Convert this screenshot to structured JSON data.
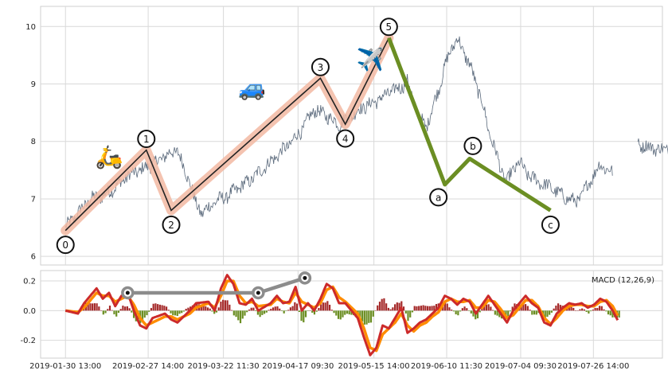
{
  "chart_data": [
    {
      "type": "line",
      "panel": "price",
      "ylim": [
        5.85,
        10.35
      ],
      "yticks": [
        6,
        7,
        8,
        9,
        10
      ],
      "grid": true,
      "price_color": "#5b6a7c",
      "price_path": [
        [
          0,
          6.5
        ],
        [
          2,
          6.75
        ],
        [
          4,
          7.0
        ],
        [
          6,
          7.05
        ],
        [
          8,
          7.2
        ],
        [
          10,
          7.4
        ],
        [
          12,
          7.5
        ],
        [
          14,
          7.6
        ],
        [
          16,
          7.75
        ],
        [
          18,
          7.85
        ],
        [
          19,
          7.55
        ],
        [
          20,
          7.3
        ],
        [
          21,
          6.9
        ],
        [
          22,
          6.75
        ],
        [
          24,
          6.95
        ],
        [
          26,
          7.05
        ],
        [
          28,
          7.2
        ],
        [
          30,
          7.35
        ],
        [
          32,
          7.55
        ],
        [
          34,
          7.75
        ],
        [
          36,
          7.95
        ],
        [
          38,
          8.2
        ],
        [
          40,
          8.55
        ],
        [
          42,
          8.45
        ],
        [
          44,
          8.3
        ],
        [
          46,
          8.45
        ],
        [
          48,
          8.6
        ],
        [
          50,
          8.7
        ],
        [
          52,
          8.85
        ],
        [
          54,
          8.95
        ],
        [
          55,
          9.05
        ],
        [
          56,
          8.7
        ],
        [
          57,
          8.4
        ],
        [
          58,
          8.25
        ],
        [
          60,
          8.9
        ],
        [
          61,
          9.3
        ],
        [
          62,
          9.6
        ],
        [
          63,
          9.8
        ],
        [
          64,
          9.55
        ],
        [
          65,
          9.35
        ],
        [
          66,
          9.0
        ],
        [
          67,
          8.7
        ],
        [
          68,
          8.2
        ],
        [
          69,
          7.9
        ],
        [
          70,
          7.5
        ],
        [
          71,
          7.3
        ],
        [
          72,
          7.5
        ],
        [
          73,
          7.65
        ],
        [
          74,
          7.45
        ],
        [
          76,
          7.3
        ],
        [
          78,
          7.2
        ],
        [
          80,
          7.05
        ],
        [
          82,
          6.95
        ],
        [
          83,
          7.05
        ],
        [
          84,
          7.25
        ],
        [
          86,
          7.6
        ],
        [
          88,
          7.45
        ],
        [
          90,
          7.5
        ],
        [
          92,
          7.95
        ],
        [
          94,
          7.9
        ],
        [
          96,
          7.85
        ],
        [
          98,
          7.95
        ],
        [
          100,
          8.0
        ],
        [
          102,
          7.85
        ],
        [
          104,
          7.7
        ],
        [
          106,
          7.6
        ],
        [
          108,
          7.75
        ],
        [
          110,
          7.8
        ],
        [
          112,
          7.95
        ],
        [
          114,
          8.0
        ],
        [
          115,
          8.15
        ],
        [
          116,
          7.9
        ],
        [
          117,
          7.75
        ]
      ],
      "gap_after_x": [
        [
          88,
          92
        ]
      ],
      "wave_x_range": [
        0,
        117
      ],
      "impulse_wave": {
        "labels": [
          "0",
          "1",
          "2",
          "3",
          "4",
          "5"
        ],
        "x": [
          0,
          13,
          17,
          41,
          45,
          52
        ],
        "y": [
          6.45,
          7.85,
          6.8,
          9.1,
          8.3,
          9.8
        ],
        "line_color": "#222222",
        "band_color": "#f2b8a2"
      },
      "correction_wave": {
        "labels": [
          "a",
          "b",
          "c"
        ],
        "x": [
          61,
          65,
          78
        ],
        "y": [
          7.25,
          7.7,
          6.8
        ],
        "color": "#6b8e23"
      },
      "emoji_markers": [
        {
          "name": "scooter",
          "glyph": "🛵",
          "x": 7,
          "y": 7.6
        },
        {
          "name": "car",
          "glyph": "🚙",
          "x": 30,
          "y": 8.8
        },
        {
          "name": "airplane",
          "glyph": "✈️",
          "x": 49,
          "y": 9.3
        }
      ]
    },
    {
      "type": "area",
      "panel": "macd",
      "label": "MACD (12,26,9)",
      "ylim": [
        -0.32,
        0.27
      ],
      "yticks": [
        -0.2,
        0.0,
        0.2
      ],
      "grid": true,
      "xtick_labels": [
        "2019-01-30 13:00",
        "2019-02-27 14:00",
        "2019-03-22 11:30",
        "2019-04-17 09:30",
        "2019-05-15 14:00",
        "2019-06-10 11:30",
        "2019-07-04 09:30",
        "2019-07-26 14:00"
      ],
      "xtick_x": [
        0,
        13.3,
        25.4,
        37.4,
        49.6,
        61.3,
        73.2,
        84.9
      ],
      "macd_color": "#cc2a2a",
      "signal_color": "#ff8c00",
      "hist_pos_color": "#a52a2a",
      "hist_neg_color": "#6b8e23",
      "macd": [
        [
          0,
          0.0
        ],
        [
          2,
          -0.02
        ],
        [
          3,
          0.05
        ],
        [
          5,
          0.15
        ],
        [
          6,
          0.08
        ],
        [
          7,
          0.12
        ],
        [
          8,
          0.03
        ],
        [
          9,
          0.1
        ],
        [
          10,
          0.12
        ],
        [
          11,
          0.0
        ],
        [
          12,
          -0.1
        ],
        [
          13,
          -0.12
        ],
        [
          14,
          -0.05
        ],
        [
          16,
          -0.02
        ],
        [
          17,
          -0.06
        ],
        [
          18,
          -0.08
        ],
        [
          20,
          0.0
        ],
        [
          21,
          0.05
        ],
        [
          23,
          0.06
        ],
        [
          24,
          0.0
        ],
        [
          25,
          0.15
        ],
        [
          26,
          0.24
        ],
        [
          27,
          0.18
        ],
        [
          28,
          0.05
        ],
        [
          29,
          0.04
        ],
        [
          30,
          0.08
        ],
        [
          31,
          0.0
        ],
        [
          33,
          0.05
        ],
        [
          34,
          0.1
        ],
        [
          35,
          0.05
        ],
        [
          36,
          0.06
        ],
        [
          37,
          0.16
        ],
        [
          38,
          0.0
        ],
        [
          39,
          0.05
        ],
        [
          40,
          0.0
        ],
        [
          41,
          0.08
        ],
        [
          42,
          0.18
        ],
        [
          43,
          0.15
        ],
        [
          44,
          0.05
        ],
        [
          45,
          0.05
        ],
        [
          46,
          0.0
        ],
        [
          47,
          -0.05
        ],
        [
          48,
          -0.18
        ],
        [
          49,
          -0.3
        ],
        [
          50,
          -0.25
        ],
        [
          51,
          -0.1
        ],
        [
          52,
          -0.12
        ],
        [
          53,
          -0.05
        ],
        [
          54,
          0.02
        ],
        [
          55,
          -0.15
        ],
        [
          56,
          -0.12
        ],
        [
          57,
          -0.08
        ],
        [
          58,
          -0.06
        ],
        [
          59,
          -0.02
        ],
        [
          60,
          0.02
        ],
        [
          61,
          0.1
        ],
        [
          62,
          0.08
        ],
        [
          63,
          0.04
        ],
        [
          64,
          0.08
        ],
        [
          65,
          0.06
        ],
        [
          66,
          -0.02
        ],
        [
          67,
          0.04
        ],
        [
          68,
          0.1
        ],
        [
          69,
          0.04
        ],
        [
          70,
          -0.02
        ],
        [
          71,
          -0.08
        ],
        [
          72,
          0.0
        ],
        [
          73,
          0.05
        ],
        [
          74,
          0.1
        ],
        [
          75,
          0.05
        ],
        [
          76,
          0.02
        ],
        [
          77,
          -0.08
        ],
        [
          78,
          -0.1
        ],
        [
          79,
          -0.02
        ],
        [
          80,
          0.02
        ],
        [
          81,
          0.05
        ],
        [
          82,
          0.04
        ],
        [
          83,
          0.05
        ],
        [
          84,
          0.02
        ],
        [
          85,
          0.04
        ],
        [
          86,
          0.08
        ],
        [
          87,
          0.06
        ],
        [
          88,
          0.0
        ],
        [
          89,
          -0.08
        ]
      ],
      "signal": [
        [
          0,
          0.0
        ],
        [
          2,
          -0.01
        ],
        [
          3,
          0.02
        ],
        [
          5,
          0.12
        ],
        [
          6,
          0.1
        ],
        [
          7,
          0.1
        ],
        [
          8,
          0.06
        ],
        [
          9,
          0.08
        ],
        [
          10,
          0.1
        ],
        [
          11,
          0.04
        ],
        [
          12,
          -0.05
        ],
        [
          13,
          -0.1
        ],
        [
          14,
          -0.08
        ],
        [
          16,
          -0.04
        ],
        [
          17,
          -0.04
        ],
        [
          18,
          -0.06
        ],
        [
          20,
          -0.02
        ],
        [
          21,
          0.02
        ],
        [
          23,
          0.05
        ],
        [
          24,
          0.02
        ],
        [
          25,
          0.1
        ],
        [
          26,
          0.2
        ],
        [
          27,
          0.2
        ],
        [
          28,
          0.1
        ],
        [
          29,
          0.05
        ],
        [
          30,
          0.06
        ],
        [
          31,
          0.03
        ],
        [
          33,
          0.04
        ],
        [
          34,
          0.08
        ],
        [
          35,
          0.06
        ],
        [
          36,
          0.05
        ],
        [
          37,
          0.12
        ],
        [
          38,
          0.06
        ],
        [
          39,
          0.04
        ],
        [
          40,
          0.02
        ],
        [
          41,
          0.05
        ],
        [
          42,
          0.14
        ],
        [
          43,
          0.16
        ],
        [
          44,
          0.09
        ],
        [
          45,
          0.06
        ],
        [
          46,
          0.02
        ],
        [
          47,
          -0.02
        ],
        [
          48,
          -0.12
        ],
        [
          49,
          -0.25
        ],
        [
          50,
          -0.27
        ],
        [
          51,
          -0.16
        ],
        [
          52,
          -0.12
        ],
        [
          53,
          -0.08
        ],
        [
          54,
          -0.02
        ],
        [
          55,
          -0.1
        ],
        [
          56,
          -0.14
        ],
        [
          57,
          -0.1
        ],
        [
          58,
          -0.08
        ],
        [
          59,
          -0.04
        ],
        [
          60,
          -0.01
        ],
        [
          61,
          0.06
        ],
        [
          62,
          0.08
        ],
        [
          63,
          0.06
        ],
        [
          64,
          0.06
        ],
        [
          65,
          0.07
        ],
        [
          66,
          0.02
        ],
        [
          67,
          0.02
        ],
        [
          68,
          0.07
        ],
        [
          69,
          0.06
        ],
        [
          70,
          0.01
        ],
        [
          71,
          -0.05
        ],
        [
          72,
          -0.03
        ],
        [
          73,
          0.02
        ],
        [
          74,
          0.07
        ],
        [
          75,
          0.07
        ],
        [
          76,
          0.03
        ],
        [
          77,
          -0.05
        ],
        [
          78,
          -0.09
        ],
        [
          79,
          -0.05
        ],
        [
          80,
          0.0
        ],
        [
          81,
          0.03
        ],
        [
          82,
          0.04
        ],
        [
          83,
          0.04
        ],
        [
          84,
          0.03
        ],
        [
          85,
          0.03
        ],
        [
          86,
          0.06
        ],
        [
          87,
          0.07
        ],
        [
          88,
          0.03
        ],
        [
          89,
          -0.05
        ]
      ],
      "hist_x_max": 89,
      "trendline": {
        "color": "#8c8c8c",
        "points": [
          [
            10,
            0.12
          ],
          [
            31,
            0.12
          ],
          [
            38.5,
            0.22
          ]
        ]
      }
    }
  ]
}
